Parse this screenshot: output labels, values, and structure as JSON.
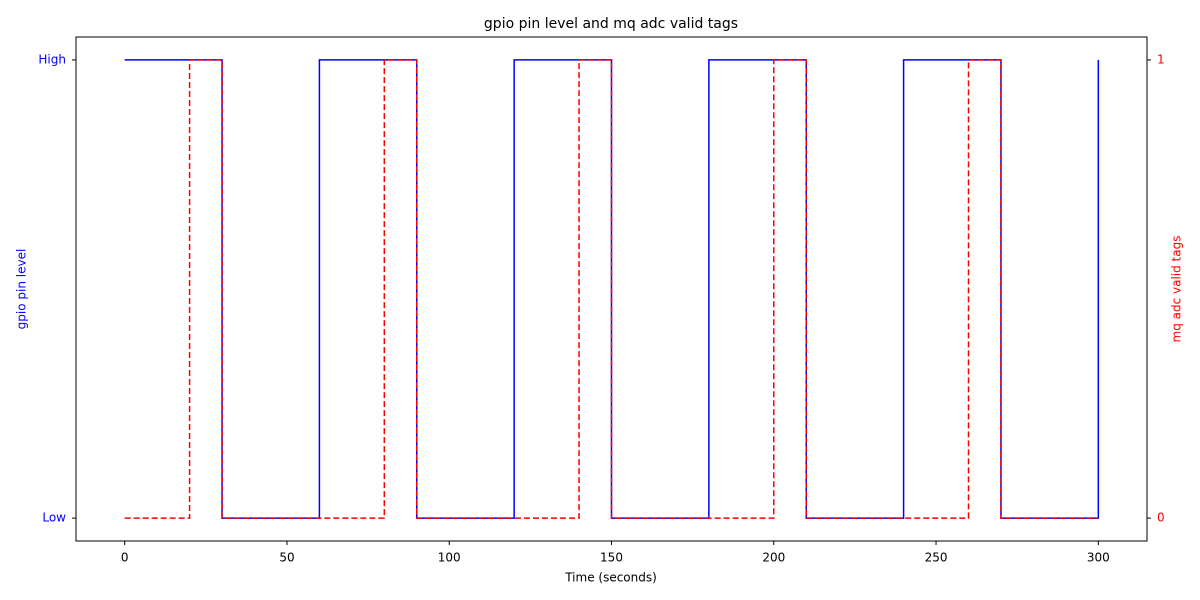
{
  "chart_data": {
    "type": "line",
    "drawstyle": "steps-post",
    "title": "gpio pin level and mq adc valid tags",
    "xlabel": "Time (seconds)",
    "ylabel": "gpio pin level",
    "y2label": "mq adc valid tags",
    "xlim": [
      -15,
      315
    ],
    "xticks": [
      0,
      50,
      100,
      150,
      200,
      250,
      300
    ],
    "ylim": [
      -0.05,
      1.05
    ],
    "yticks": [
      {
        "value": 0,
        "label": "Low"
      },
      {
        "value": 1,
        "label": "High"
      }
    ],
    "y2lim": [
      -0.05,
      1.05
    ],
    "y2ticks": [
      0,
      1
    ],
    "series": [
      {
        "name": "gpio pin level",
        "color": "blue",
        "dash": false,
        "x": [
          0,
          30,
          60,
          90,
          120,
          150,
          180,
          210,
          240,
          270,
          300
        ],
        "values": [
          1,
          0,
          1,
          0,
          1,
          0,
          1,
          0,
          1,
          0,
          1
        ]
      },
      {
        "name": "mq adc valid tags",
        "color": "red",
        "dash": true,
        "axis": "y2",
        "x": [
          0,
          20,
          30,
          80,
          90,
          140,
          150,
          200,
          210,
          260,
          270,
          300
        ],
        "values": [
          0,
          1,
          0,
          1,
          0,
          1,
          0,
          1,
          0,
          1,
          0,
          0
        ]
      }
    ]
  }
}
